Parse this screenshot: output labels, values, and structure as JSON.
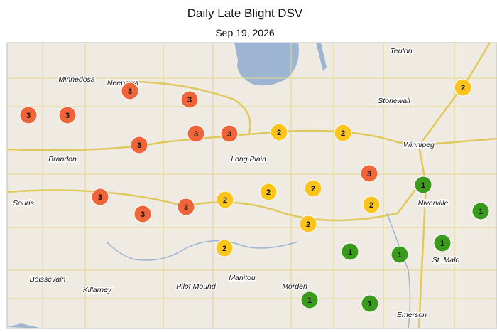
{
  "title": "Daily Late Blight DSV",
  "date": "Sep 19, 2026",
  "places": [
    "Teulon",
    "Minnedosa",
    "Neepawa",
    "Stonewall",
    "Winnipeg",
    "Brandon",
    "Long Plain",
    "Souris",
    "Niverville",
    "St. Malo",
    "Boissevain",
    "Manitou",
    "Pilot Mound",
    "Killarney",
    "Morden",
    "Emerson"
  ],
  "sites": [
    {
      "dsv": 3
    },
    {
      "dsv": 3
    },
    {
      "dsv": 3
    },
    {
      "dsv": 3
    },
    {
      "dsv": 3
    },
    {
      "dsv": 3
    },
    {
      "dsv": 3
    },
    {
      "dsv": 2
    },
    {
      "dsv": 2
    },
    {
      "dsv": 2
    },
    {
      "dsv": 3
    },
    {
      "dsv": 1
    },
    {
      "dsv": 3
    },
    {
      "dsv": 3
    },
    {
      "dsv": 3
    },
    {
      "dsv": 2
    },
    {
      "dsv": 2
    },
    {
      "dsv": 2
    },
    {
      "dsv": 2
    },
    {
      "dsv": 2
    },
    {
      "dsv": 1
    },
    {
      "dsv": 1
    },
    {
      "dsv": 1
    },
    {
      "dsv": 1
    },
    {
      "dsv": 2
    },
    {
      "dsv": 1
    },
    {
      "dsv": 1
    }
  ],
  "dsv_colors": {
    "1": "#3a9a1c",
    "2": "#fcc41c",
    "3": "#f0643a"
  }
}
